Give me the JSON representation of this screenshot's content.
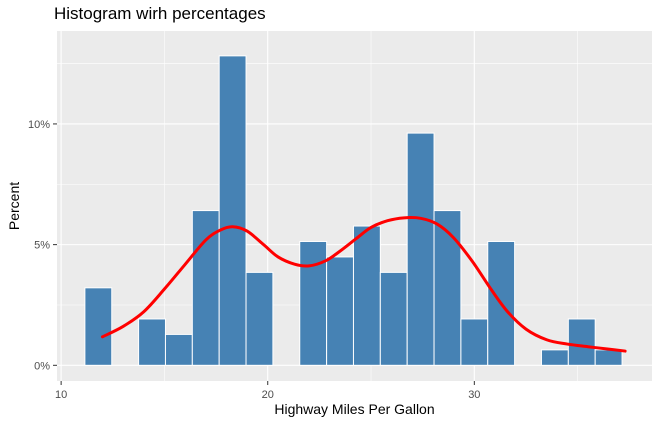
{
  "chart_data": {
    "type": "bar",
    "title": "Histogram wirh percentages",
    "xlabel": "Highway Miles Per Gallon",
    "ylabel": "Percent",
    "xlim": [
      9.8,
      38.6
    ],
    "ylim": [
      -0.0065,
      0.1385
    ],
    "x_ticks": [
      10,
      20,
      30
    ],
    "x_tick_labels": [
      "10",
      "20",
      "30"
    ],
    "y_ticks": [
      0,
      0.05,
      0.1
    ],
    "y_tick_labels": [
      "0%",
      "5%",
      "10%"
    ],
    "bin_width": 1.3,
    "bins": [
      {
        "x": 11.8,
        "value": 0.0321
      },
      {
        "x": 13.1,
        "value": 0.0
      },
      {
        "x": 14.4,
        "value": 0.0192
      },
      {
        "x": 15.7,
        "value": 0.0128
      },
      {
        "x": 17.0,
        "value": 0.0641
      },
      {
        "x": 18.3,
        "value": 0.1282
      },
      {
        "x": 19.6,
        "value": 0.0385
      },
      {
        "x": 20.9,
        "value": 0.0
      },
      {
        "x": 22.2,
        "value": 0.0513
      },
      {
        "x": 23.5,
        "value": 0.0449
      },
      {
        "x": 24.8,
        "value": 0.0577
      },
      {
        "x": 26.1,
        "value": 0.0385
      },
      {
        "x": 27.4,
        "value": 0.0962
      },
      {
        "x": 28.7,
        "value": 0.0641
      },
      {
        "x": 30.0,
        "value": 0.0192
      },
      {
        "x": 31.3,
        "value": 0.0513
      },
      {
        "x": 32.6,
        "value": 0.0
      },
      {
        "x": 33.9,
        "value": 0.0064
      },
      {
        "x": 35.2,
        "value": 0.0192
      },
      {
        "x": 36.5,
        "value": 0.0064
      }
    ],
    "density_curve": {
      "x": [
        12,
        13,
        14,
        15,
        16,
        17,
        17.7,
        18.3,
        19,
        19.8,
        20.5,
        21.3,
        22,
        22.8,
        23.5,
        24.3,
        25,
        25.8,
        26.6,
        27.4,
        28.2,
        29,
        29.9,
        30.8,
        31.6,
        32.5,
        33.5,
        34.5,
        35.5,
        36.5,
        37.3
      ],
      "y": [
        0.0118,
        0.0161,
        0.0222,
        0.0316,
        0.0418,
        0.0519,
        0.056,
        0.0574,
        0.0556,
        0.05,
        0.0449,
        0.0419,
        0.0412,
        0.0433,
        0.0473,
        0.0526,
        0.0571,
        0.0599,
        0.0611,
        0.0609,
        0.0585,
        0.0528,
        0.0431,
        0.0316,
        0.0223,
        0.015,
        0.0106,
        0.0088,
        0.0077,
        0.0067,
        0.0059
      ]
    },
    "colors": {
      "bar_fill": "#4682B4",
      "bar_outline": "#FFFFFF",
      "curve": "#FF0000",
      "panel": "#EBEBEB",
      "grid": "#FFFFFF"
    },
    "grid": true,
    "legend": "none"
  }
}
